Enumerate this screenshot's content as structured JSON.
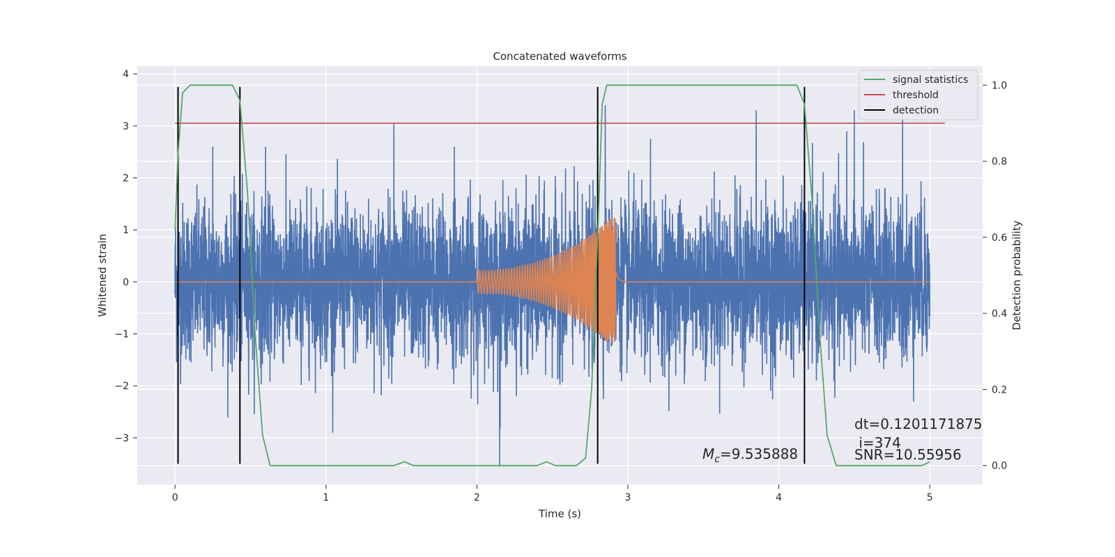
{
  "chart_data": {
    "type": "line",
    "title": "Concatenated waveforms",
    "xlabel": "Time (s)",
    "ylabel_left": "Whitened strain",
    "ylabel_right": "Detection probability",
    "xlim": [
      -0.25,
      5.35
    ],
    "ylim_left": [
      -3.9,
      4.15
    ],
    "ylim_right": [
      -0.05,
      1.05
    ],
    "xticks": [
      0,
      1,
      2,
      3,
      4,
      5
    ],
    "yticks_left": [
      -3,
      -2,
      -1,
      0,
      1,
      2,
      3,
      4
    ],
    "yticks_right": [
      0.0,
      0.2,
      0.4,
      0.6,
      0.8,
      1.0
    ],
    "grid": true,
    "legend_position": "top-right",
    "series": [
      {
        "name": "signal statistics",
        "axis": "right",
        "color": "#55a868",
        "points": [
          [
            0.0,
            0.62
          ],
          [
            0.02,
            0.82
          ],
          [
            0.05,
            0.98
          ],
          [
            0.1,
            1.0
          ],
          [
            0.38,
            1.0
          ],
          [
            0.43,
            0.96
          ],
          [
            0.48,
            0.72
          ],
          [
            0.53,
            0.35
          ],
          [
            0.58,
            0.08
          ],
          [
            0.63,
            0.0
          ],
          [
            1.45,
            0.0
          ],
          [
            1.52,
            0.01
          ],
          [
            1.58,
            0.0
          ],
          [
            2.4,
            0.0
          ],
          [
            2.46,
            0.01
          ],
          [
            2.52,
            0.0
          ],
          [
            2.66,
            0.0
          ],
          [
            2.72,
            0.02
          ],
          [
            2.76,
            0.2
          ],
          [
            2.8,
            0.6
          ],
          [
            2.83,
            0.95
          ],
          [
            2.86,
            1.0
          ],
          [
            4.12,
            1.0
          ],
          [
            4.17,
            0.95
          ],
          [
            4.22,
            0.7
          ],
          [
            4.27,
            0.35
          ],
          [
            4.32,
            0.08
          ],
          [
            4.38,
            0.0
          ],
          [
            4.95,
            0.0
          ],
          [
            5.0,
            0.01
          ]
        ]
      },
      {
        "name": "threshold",
        "axis": "right",
        "color": "#c44e52",
        "points": [
          [
            0.0,
            0.9
          ],
          [
            5.1,
            0.9
          ]
        ]
      },
      {
        "name": "detection",
        "axis": "left",
        "color": "#000000",
        "x_positions": [
          0.02,
          0.43,
          2.8,
          4.17
        ],
        "y_range": [
          -3.5,
          3.75
        ]
      },
      {
        "axis": "left",
        "color": "#4c72b0",
        "x_range": [
          0,
          5
        ],
        "envelope": 1.0,
        "peaks": [
          [
            0.25,
            2.6
          ],
          [
            0.6,
            2.6
          ],
          [
            1.45,
            3.05
          ],
          [
            1.85,
            2.6
          ],
          [
            2.15,
            -3.55
          ],
          [
            2.8,
            3.7
          ],
          [
            2.85,
            3.4
          ],
          [
            3.15,
            2.75
          ],
          [
            3.85,
            3.3
          ],
          [
            4.45,
            2.9
          ],
          [
            4.5,
            3.3
          ],
          [
            4.82,
            3.25
          ]
        ]
      },
      {
        "axis": "left",
        "color": "#dd8452",
        "x_range": [
          0,
          5
        ],
        "chirp_start": 2.0,
        "chirp_peak_time": 2.92,
        "chirp_peak_amplitude": 1.3
      }
    ],
    "annotations": [
      {
        "id": "mc",
        "symbol": "M",
        "subscript": "c",
        "text": "=9.535888"
      },
      {
        "id": "dt",
        "text": "dt=0.1201171875"
      },
      {
        "id": "i",
        "text": " i=374"
      },
      {
        "id": "snr",
        "text": "SNR=10.55956"
      }
    ]
  }
}
